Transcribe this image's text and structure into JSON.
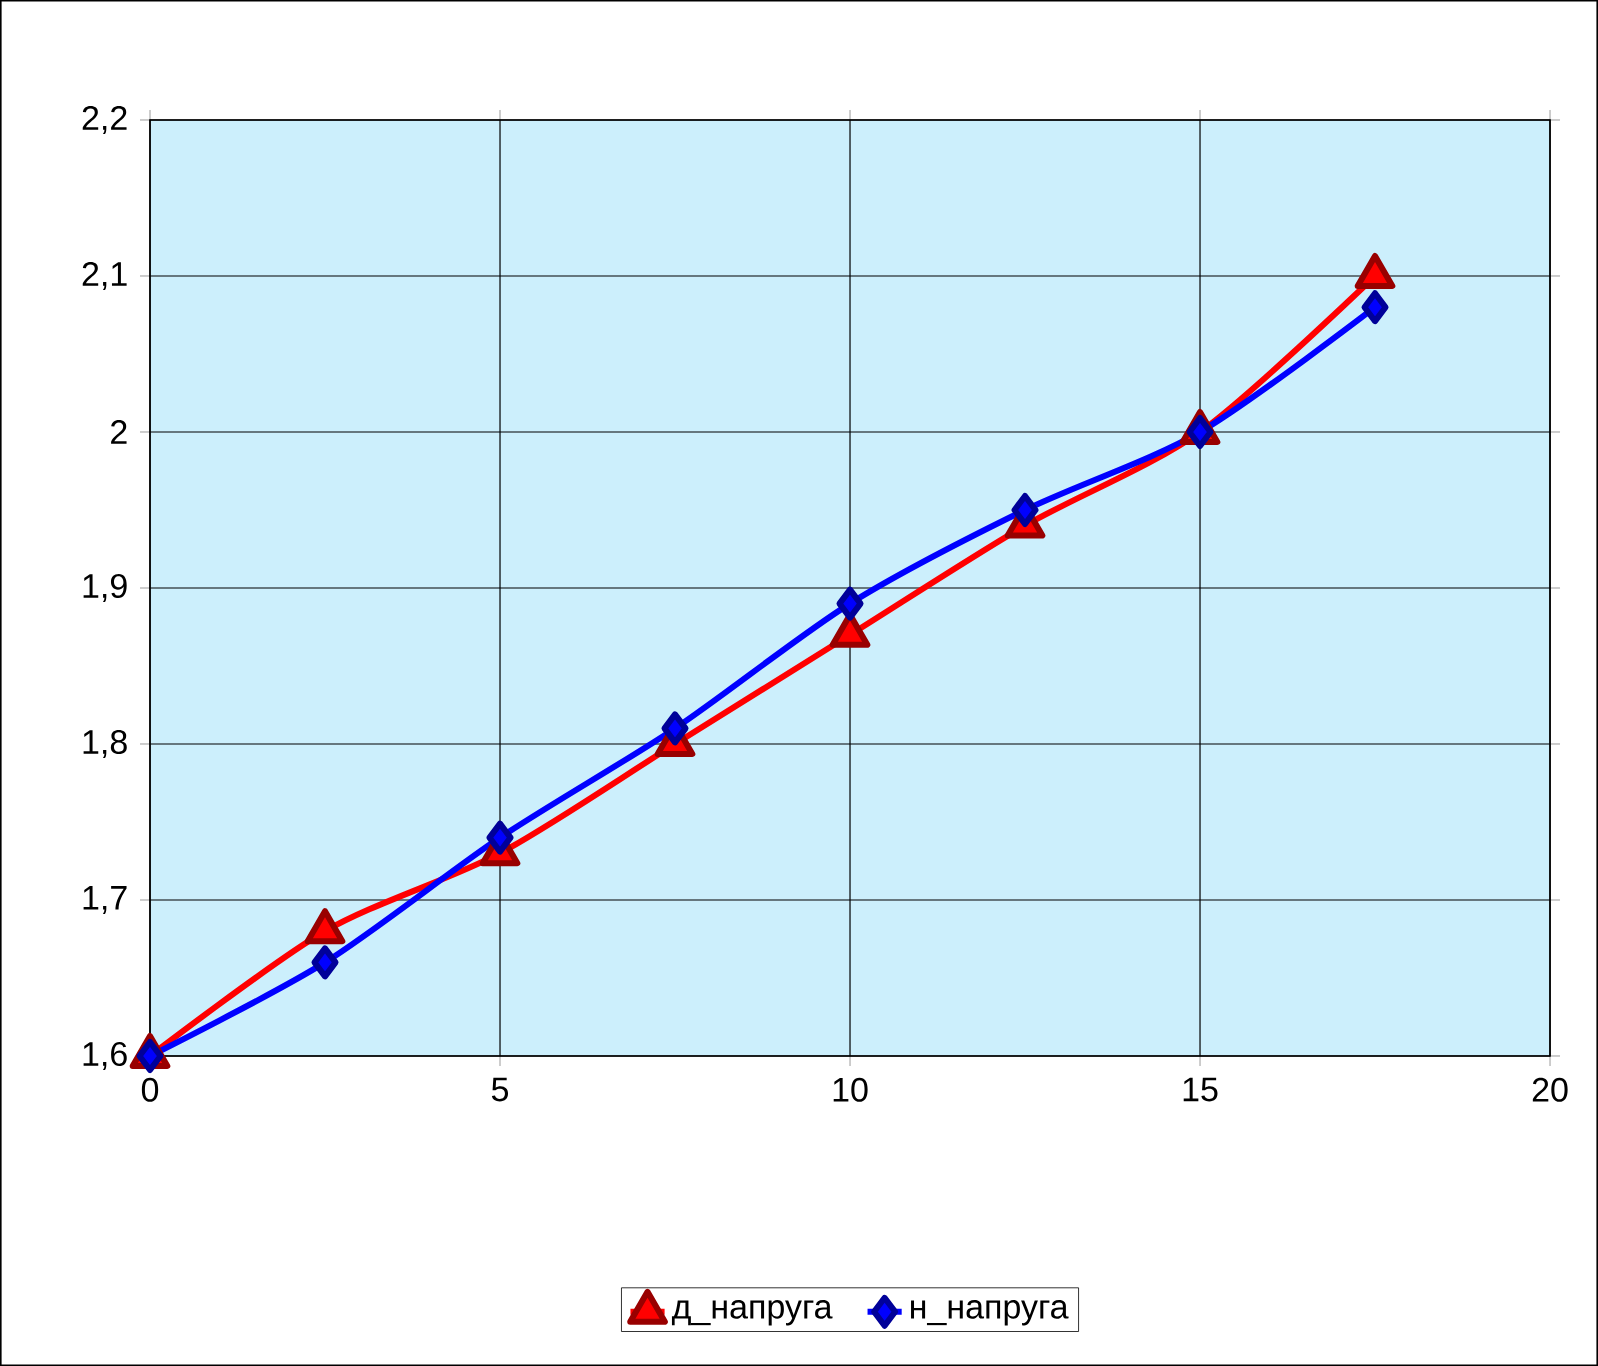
{
  "chart_data": {
    "type": "line",
    "x": [
      0,
      2.5,
      5,
      7.5,
      10,
      12.5,
      15,
      17.5
    ],
    "series": [
      {
        "name": "д_напруга",
        "color": "#ff0000",
        "marker": "triangle",
        "values": [
          1.6,
          1.68,
          1.73,
          1.8,
          1.87,
          1.94,
          2.0,
          2.1
        ]
      },
      {
        "name": "н_напруга",
        "color": "#0000ff",
        "marker": "diamond",
        "values": [
          1.6,
          1.66,
          1.74,
          1.81,
          1.89,
          1.95,
          2.0,
          2.08
        ]
      }
    ],
    "xlim": [
      0,
      20
    ],
    "xticks": [
      0,
      5,
      10,
      15,
      20
    ],
    "ylim": [
      1.6,
      2.2
    ],
    "yticks": [
      {
        "value": 1.6,
        "label": "1,6"
      },
      {
        "value": 1.7,
        "label": "1,7"
      },
      {
        "value": 1.8,
        "label": "1,8"
      },
      {
        "value": 1.9,
        "label": "1,9"
      },
      2,
      {
        "value": 2.1,
        "label": "2,1"
      },
      {
        "value": 2.2,
        "label": "2,2"
      }
    ],
    "grid": true,
    "legend": "bottom",
    "line_style": "solid"
  }
}
